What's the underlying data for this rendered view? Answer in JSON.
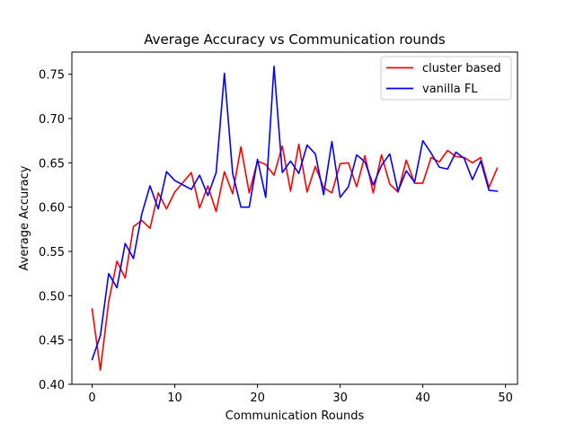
{
  "chart_data": {
    "type": "line",
    "title": "Average Accuracy vs Communication rounds",
    "xlabel": "Communication Rounds",
    "ylabel": "Average Accuracy",
    "xlim": [
      -2.45,
      51.45
    ],
    "ylim": [
      0.4,
      0.775
    ],
    "xticks": [
      0,
      10,
      20,
      30,
      40,
      50
    ],
    "yticks": [
      0.4,
      0.45,
      0.5,
      0.55,
      0.6,
      0.65,
      0.7,
      0.75
    ],
    "ytick_labels": [
      "0.40",
      "0.45",
      "0.50",
      "0.55",
      "0.60",
      "0.65",
      "0.70",
      "0.75"
    ],
    "grid": false,
    "legend_position": "top-right",
    "x": [
      0,
      1,
      2,
      3,
      4,
      5,
      6,
      7,
      8,
      9,
      10,
      11,
      12,
      13,
      14,
      15,
      16,
      17,
      18,
      19,
      20,
      21,
      22,
      23,
      24,
      25,
      26,
      27,
      28,
      29,
      30,
      31,
      32,
      33,
      34,
      35,
      36,
      37,
      38,
      39,
      40,
      41,
      42,
      43,
      44,
      45,
      46,
      47,
      48,
      49
    ],
    "series": [
      {
        "name": "cluster based",
        "color": "#ff0000",
        "values": [
          0.485,
          0.416,
          0.493,
          0.539,
          0.52,
          0.578,
          0.585,
          0.576,
          0.616,
          0.598,
          0.617,
          0.628,
          0.639,
          0.599,
          0.624,
          0.595,
          0.64,
          0.615,
          0.668,
          0.616,
          0.652,
          0.648,
          0.636,
          0.669,
          0.618,
          0.671,
          0.617,
          0.646,
          0.622,
          0.616,
          0.649,
          0.65,
          0.623,
          0.658,
          0.616,
          0.659,
          0.626,
          0.617,
          0.653,
          0.627,
          0.627,
          0.656,
          0.651,
          0.664,
          0.657,
          0.656,
          0.65,
          0.656,
          0.622,
          0.644
        ]
      },
      {
        "name": "vanilla FL",
        "color": "#0000ff",
        "values": [
          0.428,
          0.455,
          0.525,
          0.509,
          0.559,
          0.542,
          0.592,
          0.624,
          0.598,
          0.64,
          0.63,
          0.625,
          0.62,
          0.636,
          0.613,
          0.639,
          0.751,
          0.638,
          0.6,
          0.6,
          0.654,
          0.611,
          0.759,
          0.639,
          0.652,
          0.638,
          0.67,
          0.66,
          0.614,
          0.674,
          0.611,
          0.623,
          0.659,
          0.651,
          0.625,
          0.647,
          0.66,
          0.618,
          0.641,
          0.628,
          0.675,
          0.661,
          0.645,
          0.643,
          0.662,
          0.655,
          0.631,
          0.652,
          0.619,
          0.618
        ]
      }
    ]
  }
}
